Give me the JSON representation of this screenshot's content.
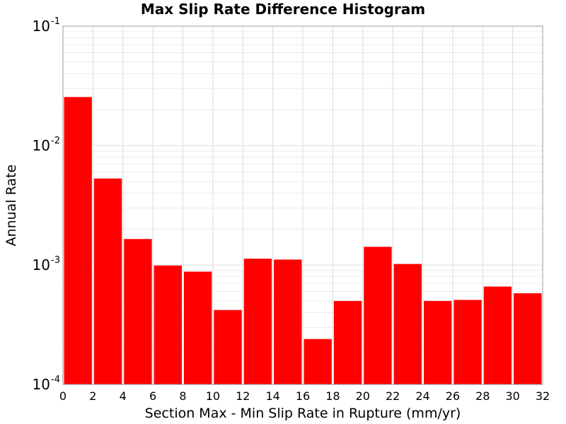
{
  "chart_data": {
    "type": "bar",
    "title": "Max Slip Rate Difference Histogram",
    "xlabel": "Section Max - Min Slip Rate in Rupture (mm/yr)",
    "ylabel": "Annual Rate",
    "xlim": [
      0,
      32
    ],
    "ylim": [
      0.0001,
      0.1
    ],
    "y_scale": "log",
    "grid": true,
    "bar_color": "#ff0000",
    "bin_width": 2,
    "x_ticks": [
      "0",
      "2",
      "4",
      "6",
      "8",
      "10",
      "12",
      "14",
      "16",
      "18",
      "20",
      "22",
      "24",
      "26",
      "28",
      "30",
      "32"
    ],
    "y_ticks": [
      {
        "base": "10",
        "exp": "-4",
        "value": 0.0001
      },
      {
        "base": "10",
        "exp": "-3",
        "value": 0.001
      },
      {
        "base": "10",
        "exp": "-2",
        "value": 0.01
      },
      {
        "base": "10",
        "exp": "-1",
        "value": 0.1
      }
    ],
    "bins": [
      {
        "x_start": 0,
        "x_end": 2,
        "value": 0.0255
      },
      {
        "x_start": 2,
        "x_end": 4,
        "value": 0.0053
      },
      {
        "x_start": 4,
        "x_end": 6,
        "value": 0.00165
      },
      {
        "x_start": 6,
        "x_end": 8,
        "value": 0.00099
      },
      {
        "x_start": 8,
        "x_end": 10,
        "value": 0.00088
      },
      {
        "x_start": 10,
        "x_end": 12,
        "value": 0.00042
      },
      {
        "x_start": 12,
        "x_end": 14,
        "value": 0.00113
      },
      {
        "x_start": 14,
        "x_end": 16,
        "value": 0.00111
      },
      {
        "x_start": 16,
        "x_end": 18,
        "value": 0.00024
      },
      {
        "x_start": 18,
        "x_end": 20,
        "value": 0.0005
      },
      {
        "x_start": 20,
        "x_end": 22,
        "value": 0.00142
      },
      {
        "x_start": 22,
        "x_end": 24,
        "value": 0.00102
      },
      {
        "x_start": 24,
        "x_end": 26,
        "value": 0.0005
      },
      {
        "x_start": 26,
        "x_end": 28,
        "value": 0.00051
      },
      {
        "x_start": 28,
        "x_end": 30,
        "value": 0.00066
      },
      {
        "x_start": 30,
        "x_end": 32,
        "value": 0.00058
      }
    ]
  }
}
